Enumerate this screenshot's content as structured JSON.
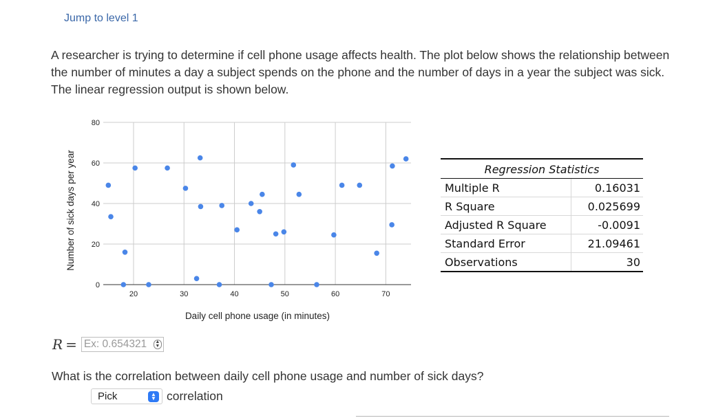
{
  "nav": {
    "jump_link": "Jump to level 1"
  },
  "question": {
    "text": "A researcher is trying to determine if cell phone usage affects health. The plot below shows the relationship between the number of minutes a day a subject spends on the phone and the number of days in a year the subject was sick. The linear regression output is shown below."
  },
  "chart_data": {
    "type": "scatter",
    "xlabel": "Daily cell phone usage (in minutes)",
    "ylabel": "Number of sick days per year",
    "xlim": [
      14,
      75
    ],
    "ylim": [
      0,
      80
    ],
    "xticks": [
      20,
      30,
      40,
      50,
      60,
      70
    ],
    "yticks": [
      0,
      20,
      40,
      60,
      80
    ],
    "grid": "major, light gray",
    "series": [
      {
        "color": "#4a86e8",
        "points": [
          [
            15,
            49
          ],
          [
            15.5,
            33.5
          ],
          [
            18,
            0
          ],
          [
            18.3,
            16
          ],
          [
            20.3,
            57.5
          ],
          [
            23,
            0
          ],
          [
            26.7,
            57.5
          ],
          [
            30.3,
            47.5
          ],
          [
            32.5,
            3
          ],
          [
            33.2,
            62.5
          ],
          [
            33.3,
            38.5
          ],
          [
            37,
            0
          ],
          [
            37.5,
            39
          ],
          [
            40.5,
            27
          ],
          [
            43.3,
            40
          ],
          [
            45,
            36
          ],
          [
            45.5,
            44.5
          ],
          [
            47.3,
            0
          ],
          [
            48.2,
            25
          ],
          [
            49.8,
            26
          ],
          [
            51.7,
            59
          ],
          [
            52.8,
            44.5
          ],
          [
            56.3,
            0
          ],
          [
            59.7,
            24.5
          ],
          [
            61.3,
            49
          ],
          [
            64.8,
            49
          ],
          [
            68.2,
            15.5
          ],
          [
            71.2,
            29.5
          ],
          [
            71.3,
            58.5
          ],
          [
            74,
            62
          ]
        ]
      }
    ]
  },
  "regression": {
    "title": "Regression Statistics",
    "rows": [
      {
        "label": "Multiple R",
        "value": "0.16031"
      },
      {
        "label": "R Square",
        "value": "0.025699"
      },
      {
        "label": "Adjusted R Square",
        "value": "-0.0091"
      },
      {
        "label": "Standard Error",
        "value": "21.09461"
      },
      {
        "label": "Observations",
        "value": "30"
      }
    ]
  },
  "answer_r": {
    "label": "R",
    "equals": "=",
    "placeholder": "Ex: 0.654321",
    "spinner_icon": "stepper-arrows-icon"
  },
  "question2": {
    "text": "What is the correlation between daily cell phone usage and number of sick days?"
  },
  "pick": {
    "selected": "Pick",
    "suffix": "correlation",
    "arrow_icon": "select-arrows-icon",
    "accent": "#2f7af5"
  }
}
